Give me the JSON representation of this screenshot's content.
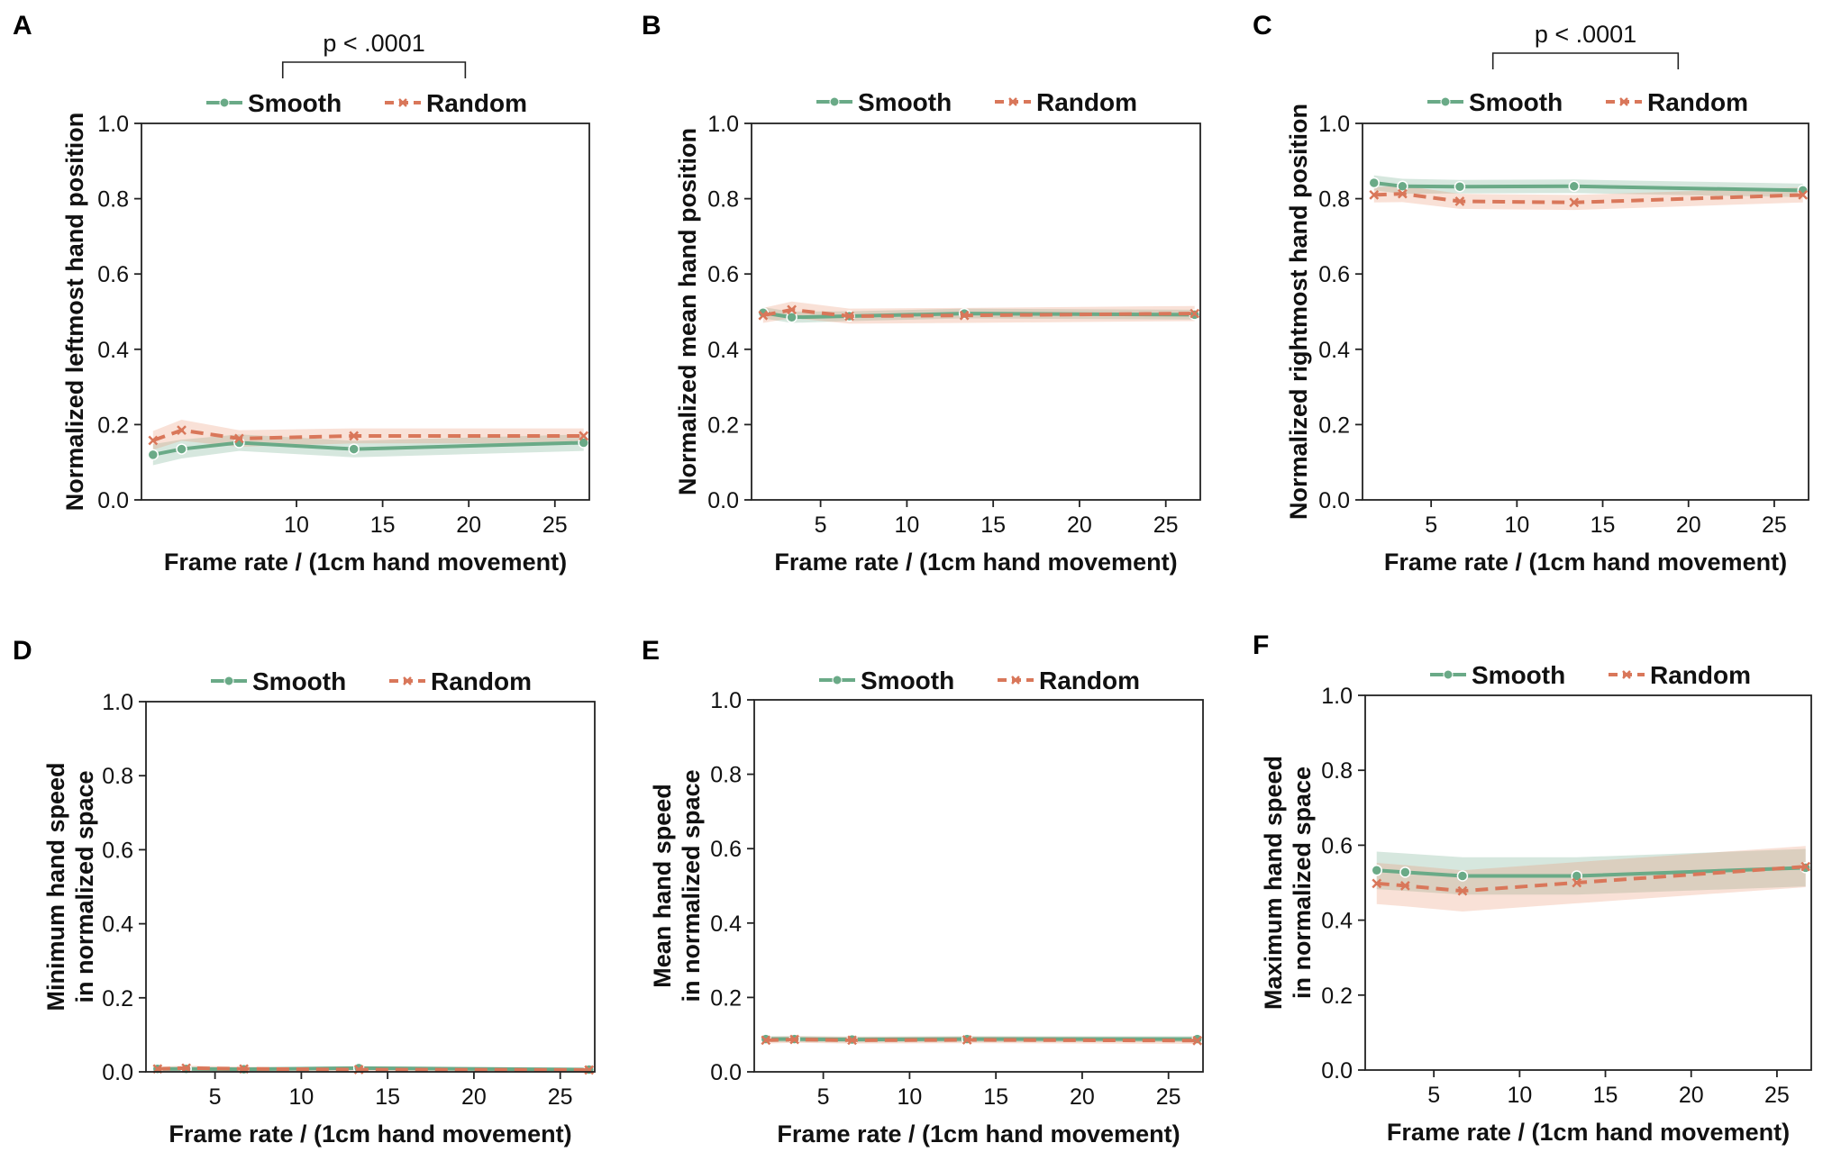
{
  "colors": {
    "smooth": "#6aaa87",
    "random": "#d9775a",
    "smooth_band": "#6aaa87",
    "random_band": "#e8926f"
  },
  "chart_data": [
    {
      "panel": "A",
      "type": "line",
      "xlabel": "Frame rate / (1cm hand movement)",
      "ylabel_lines": [
        "Normalized leftmost hand position"
      ],
      "xticks": [
        10,
        15,
        20,
        25
      ],
      "xlim": [
        1,
        27
      ],
      "yticks": [
        "0.0",
        "0.2",
        "0.4",
        "0.6",
        "0.8",
        "1.0"
      ],
      "ylim": [
        0,
        1
      ],
      "legend": [
        "Smooth",
        "Random"
      ],
      "significance": {
        "text": "p < .0001",
        "x_from": 9.2,
        "x_to": 19.8
      },
      "series": [
        {
          "name": "Smooth",
          "style": "solid",
          "marker": "circle",
          "x": [
            1.67,
            3.33,
            6.67,
            13.33,
            26.67
          ],
          "y": [
            0.12,
            0.135,
            0.152,
            0.135,
            0.152
          ],
          "band": [
            0.028,
            0.025,
            0.022,
            0.022,
            0.022
          ]
        },
        {
          "name": "Random",
          "style": "dashed",
          "marker": "x",
          "x": [
            1.67,
            3.33,
            6.67,
            13.33,
            26.67
          ],
          "y": [
            0.158,
            0.185,
            0.163,
            0.17,
            0.17
          ],
          "band": [
            0.025,
            0.028,
            0.022,
            0.02,
            0.02
          ]
        }
      ]
    },
    {
      "panel": "B",
      "type": "line",
      "xlabel": "Frame rate / (1cm hand movement)",
      "ylabel_lines": [
        "Normalized mean hand position"
      ],
      "xticks": [
        5,
        10,
        15,
        20,
        25
      ],
      "xlim": [
        1,
        27
      ],
      "yticks": [
        "0.0",
        "0.2",
        "0.4",
        "0.6",
        "0.8",
        "1.0"
      ],
      "ylim": [
        0,
        1
      ],
      "legend": [
        "Smooth",
        "Random"
      ],
      "series": [
        {
          "name": "Smooth",
          "style": "solid",
          "marker": "circle",
          "x": [
            1.67,
            3.33,
            6.67,
            13.33,
            26.67
          ],
          "y": [
            0.497,
            0.485,
            0.488,
            0.495,
            0.492
          ],
          "band": [
            0.015,
            0.015,
            0.013,
            0.013,
            0.013
          ]
        },
        {
          "name": "Random",
          "style": "dashed",
          "marker": "x",
          "x": [
            1.67,
            3.33,
            6.67,
            13.33,
            26.67
          ],
          "y": [
            0.49,
            0.505,
            0.488,
            0.49,
            0.495
          ],
          "band": [
            0.02,
            0.022,
            0.02,
            0.02,
            0.02
          ]
        }
      ]
    },
    {
      "panel": "C",
      "type": "line",
      "xlabel": "Frame rate / (1cm hand movement)",
      "ylabel_lines": [
        "Normalized rightmost hand position"
      ],
      "xticks": [
        5,
        10,
        15,
        20,
        25
      ],
      "xlim": [
        1,
        27
      ],
      "yticks": [
        "0.0",
        "0.2",
        "0.4",
        "0.6",
        "0.8",
        "1.0"
      ],
      "ylim": [
        0,
        1
      ],
      "legend": [
        "Smooth",
        "Random"
      ],
      "significance": {
        "text": "p < .0001",
        "x_from": 8.6,
        "x_to": 19.4
      },
      "series": [
        {
          "name": "Smooth",
          "style": "solid",
          "marker": "circle",
          "x": [
            1.67,
            3.33,
            6.67,
            13.33,
            26.67
          ],
          "y": [
            0.842,
            0.833,
            0.832,
            0.833,
            0.822
          ],
          "band": [
            0.02,
            0.02,
            0.018,
            0.018,
            0.018
          ]
        },
        {
          "name": "Random",
          "style": "dashed",
          "marker": "x",
          "x": [
            1.67,
            3.33,
            6.67,
            13.33,
            26.67
          ],
          "y": [
            0.81,
            0.813,
            0.793,
            0.79,
            0.81
          ],
          "band": [
            0.02,
            0.022,
            0.02,
            0.02,
            0.02
          ]
        }
      ]
    },
    {
      "panel": "D",
      "type": "line",
      "xlabel": "Frame rate / (1cm hand movement)",
      "ylabel_lines": [
        "Minimum hand speed",
        "in normalized space"
      ],
      "xticks": [
        5,
        10,
        15,
        20,
        25
      ],
      "xlim": [
        1,
        27
      ],
      "yticks": [
        "0.0",
        "0.2",
        "0.4",
        "0.6",
        "0.8",
        "1.0"
      ],
      "ylim": [
        0,
        1
      ],
      "legend": [
        "Smooth",
        "Random"
      ],
      "series": [
        {
          "name": "Smooth",
          "style": "solid",
          "marker": "circle",
          "x": [
            1.67,
            3.33,
            6.67,
            13.33,
            26.67
          ],
          "y": [
            0.008,
            0.008,
            0.007,
            0.01,
            0.006
          ],
          "band": [
            0.005,
            0.005,
            0.005,
            0.005,
            0.005
          ]
        },
        {
          "name": "Random",
          "style": "dashed",
          "marker": "x",
          "x": [
            1.67,
            3.33,
            6.67,
            13.33,
            26.67
          ],
          "y": [
            0.008,
            0.01,
            0.008,
            0.006,
            0.005
          ],
          "band": [
            0.006,
            0.007,
            0.006,
            0.005,
            0.005
          ]
        }
      ]
    },
    {
      "panel": "E",
      "type": "line",
      "xlabel": "Frame rate / (1cm hand movement)",
      "ylabel_lines": [
        "Mean hand speed",
        "in normalized space"
      ],
      "xticks": [
        5,
        10,
        15,
        20,
        25
      ],
      "xlim": [
        1,
        27
      ],
      "yticks": [
        "0.0",
        "0.2",
        "0.4",
        "0.6",
        "0.8",
        "1.0"
      ],
      "ylim": [
        0,
        1
      ],
      "legend": [
        "Smooth",
        "Random"
      ],
      "series": [
        {
          "name": "Smooth",
          "style": "solid",
          "marker": "circle",
          "x": [
            1.67,
            3.33,
            6.67,
            13.33,
            26.67
          ],
          "y": [
            0.088,
            0.088,
            0.087,
            0.088,
            0.088
          ],
          "band": [
            0.008,
            0.008,
            0.008,
            0.008,
            0.008
          ]
        },
        {
          "name": "Random",
          "style": "dashed",
          "marker": "x",
          "x": [
            1.67,
            3.33,
            6.67,
            13.33,
            26.67
          ],
          "y": [
            0.085,
            0.087,
            0.085,
            0.086,
            0.084
          ],
          "band": [
            0.009,
            0.009,
            0.009,
            0.009,
            0.009
          ]
        }
      ]
    },
    {
      "panel": "F",
      "type": "line",
      "xlabel": "Frame rate / (1cm hand movement)",
      "ylabel_lines": [
        "Maximum hand speed",
        "in normalized space"
      ],
      "xticks": [
        5,
        10,
        15,
        20,
        25
      ],
      "xlim": [
        1,
        27
      ],
      "yticks": [
        "0.0",
        "0.2",
        "0.4",
        "0.6",
        "0.8",
        "1.0"
      ],
      "ylim": [
        0,
        1
      ],
      "legend": [
        "Smooth",
        "Random"
      ],
      "series": [
        {
          "name": "Smooth",
          "style": "solid",
          "marker": "circle",
          "x": [
            1.67,
            3.33,
            6.67,
            13.33,
            26.67
          ],
          "y": [
            0.533,
            0.528,
            0.518,
            0.518,
            0.54
          ],
          "band": [
            0.05,
            0.05,
            0.05,
            0.05,
            0.05
          ]
        },
        {
          "name": "Random",
          "style": "dashed",
          "marker": "x",
          "x": [
            1.67,
            3.33,
            6.67,
            13.33,
            26.67
          ],
          "y": [
            0.498,
            0.492,
            0.478,
            0.5,
            0.543
          ],
          "band": [
            0.055,
            0.055,
            0.055,
            0.055,
            0.055
          ]
        }
      ]
    }
  ]
}
